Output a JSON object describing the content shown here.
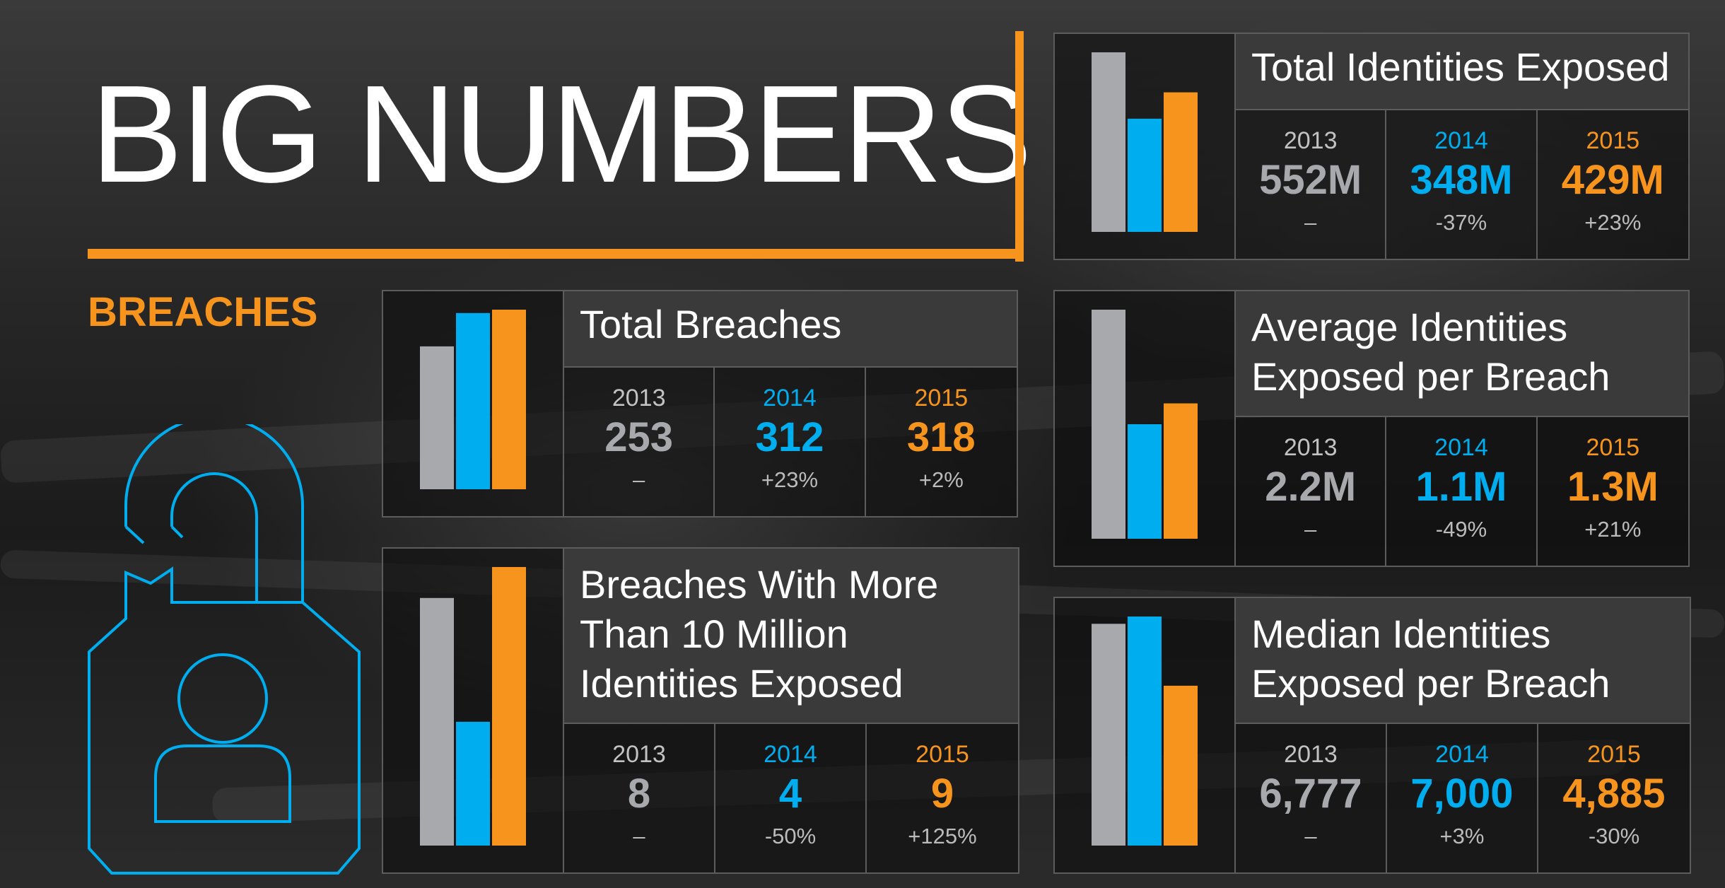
{
  "title": "BIG NUMBERS",
  "section_label": "BREACHES",
  "colors": {
    "accent": "#f7941d",
    "y2013": "#a7a9ac",
    "y2014": "#00aeef",
    "y2015": "#f7941d"
  },
  "icon": "unlocked-padlock-person-icon",
  "panels": [
    {
      "id": "total-breaches",
      "title": "Total Breaches",
      "stats": [
        {
          "year": "2013",
          "value": "253",
          "change": "–"
        },
        {
          "year": "2014",
          "value": "312",
          "change": "+23%"
        },
        {
          "year": "2015",
          "value": "318",
          "change": "+2%"
        }
      ]
    },
    {
      "id": "breaches-10m",
      "title": "Breaches With More Than 10 Million Identities Exposed",
      "stats": [
        {
          "year": "2013",
          "value": "8",
          "change": "–"
        },
        {
          "year": "2014",
          "value": "4",
          "change": "-50%"
        },
        {
          "year": "2015",
          "value": "9",
          "change": "+125%"
        }
      ]
    },
    {
      "id": "total-identities",
      "title": "Total Identities Exposed",
      "stats": [
        {
          "year": "2013",
          "value": "552M",
          "change": "–"
        },
        {
          "year": "2014",
          "value": "348M",
          "change": "-37%"
        },
        {
          "year": "2015",
          "value": "429M",
          "change": "+23%"
        }
      ]
    },
    {
      "id": "avg-identities",
      "title": "Average Identities Exposed per Breach",
      "stats": [
        {
          "year": "2013",
          "value": "2.2M",
          "change": "–"
        },
        {
          "year": "2014",
          "value": "1.1M",
          "change": "-49%"
        },
        {
          "year": "2015",
          "value": "1.3M",
          "change": "+21%"
        }
      ]
    },
    {
      "id": "median-identities",
      "title": "Median Identities Exposed per Breach",
      "stats": [
        {
          "year": "2013",
          "value": "6,777",
          "change": "–"
        },
        {
          "year": "2014",
          "value": "7,000",
          "change": "+3%"
        },
        {
          "year": "2015",
          "value": "4,885",
          "change": "-30%"
        }
      ]
    }
  ],
  "chart_data": [
    {
      "type": "bar",
      "categories": [
        "2013",
        "2014",
        "2015"
      ],
      "values": [
        253,
        312,
        318
      ],
      "title": "Total Breaches"
    },
    {
      "type": "bar",
      "categories": [
        "2013",
        "2014",
        "2015"
      ],
      "values": [
        8,
        4,
        9
      ],
      "title": "Breaches With More Than 10 Million Identities Exposed"
    },
    {
      "type": "bar",
      "categories": [
        "2013",
        "2014",
        "2015"
      ],
      "values": [
        552,
        348,
        429
      ],
      "title": "Total Identities Exposed"
    },
    {
      "type": "bar",
      "categories": [
        "2013",
        "2014",
        "2015"
      ],
      "values": [
        2.2,
        1.1,
        1.3
      ],
      "title": "Average Identities Exposed per Breach"
    },
    {
      "type": "bar",
      "categories": [
        "2013",
        "2014",
        "2015"
      ],
      "values": [
        6777,
        7000,
        4885
      ],
      "title": "Median Identities Exposed per Breach"
    }
  ]
}
